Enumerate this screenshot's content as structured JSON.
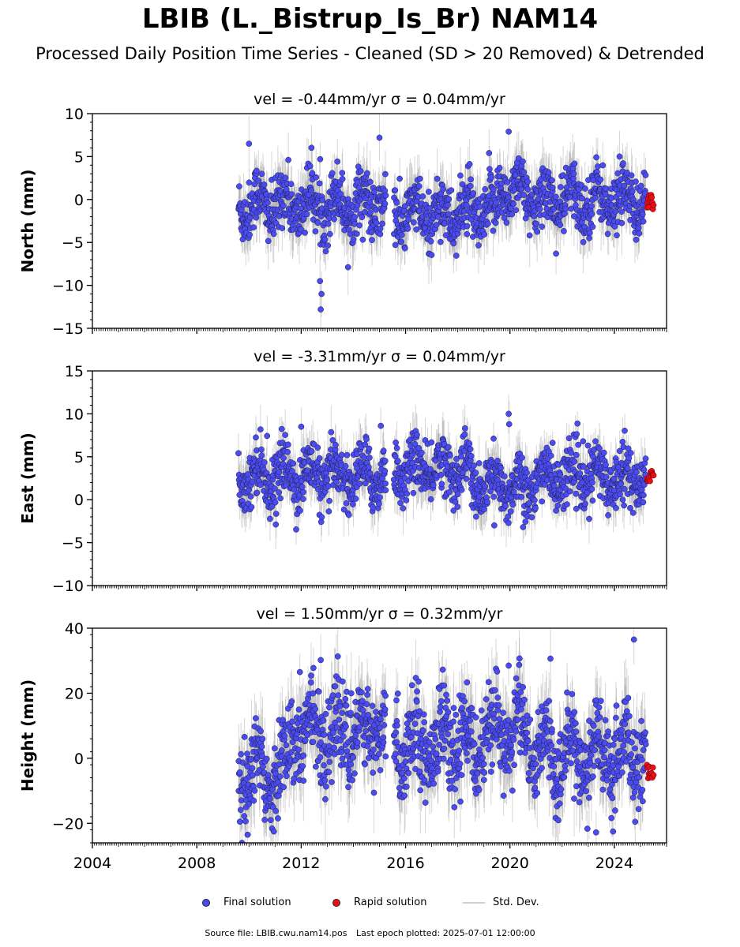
{
  "title": "LBIB (L._Bistrup_Is_Br) NAM14",
  "subtitle": "Processed Daily Position Time Series - Cleaned (SD > 20 Removed) & Detrended",
  "legend": {
    "final_label": "Final solution",
    "rapid_label": "Rapid solution",
    "stddev_label": "Std. Dev."
  },
  "footer": {
    "source": "Source file: LBIB.cwu.nam14.pos",
    "last_epoch": "Last epoch plotted: 2025-07-01 12:00:00"
  },
  "colors": {
    "final": "#4b4bf2",
    "rapid": "#e8101a",
    "stddev": "#8a8a8a"
  },
  "chart_data": [
    {
      "type": "scatter",
      "title": "vel = -0.44mm/yr   σ = 0.04mm/yr",
      "ylabel": "North (mm)",
      "xlim": [
        2004,
        2026
      ],
      "ylim": [
        -15,
        10
      ],
      "yticks": [
        10,
        5,
        0,
        -5,
        -10,
        -15
      ],
      "ytick_labels": [
        "10",
        "5",
        "0",
        "−5",
        "−10",
        "−15"
      ],
      "final_start": 2009.6,
      "final_end": 2025.2,
      "gaps": [
        [
          2015.25,
          2015.55
        ]
      ],
      "rapid_x": [
        2025.25,
        2025.5
      ],
      "rapid_range": [
        -1.2,
        0.7
      ],
      "spread": 1.7,
      "annual_amp": 1.6,
      "segment_means": [
        [
          2009.6,
          2015.3,
          -0.6
        ],
        [
          2015.5,
          2019.5,
          -1.7
        ],
        [
          2019.5,
          2020.6,
          1.2
        ],
        [
          2020.6,
          2025.3,
          -0.1
        ]
      ],
      "error_bar": 2.5,
      "outliers": [
        [
          2012.75,
          -12.8
        ],
        [
          2012.78,
          -11.0
        ],
        [
          2012.72,
          -9.5
        ],
        [
          2019.95,
          7.9
        ],
        [
          2015.0,
          7.2
        ],
        [
          2010.0,
          6.5
        ],
        [
          2019.2,
          5.4
        ],
        [
          2024.2,
          5.0
        ]
      ]
    },
    {
      "type": "scatter",
      "title": "vel = -3.31mm/yr   σ = 0.04mm/yr",
      "ylabel": "East (mm)",
      "xlim": [
        2004,
        2026
      ],
      "ylim": [
        -10,
        15
      ],
      "yticks": [
        15,
        10,
        5,
        0,
        -5,
        -10
      ],
      "ytick_labels": [
        "15",
        "10",
        "5",
        "0",
        "−5",
        "−10"
      ],
      "final_start": 2009.6,
      "final_end": 2025.2,
      "gaps": [
        [
          2015.25,
          2015.55
        ]
      ],
      "rapid_x": [
        2025.25,
        2025.5
      ],
      "rapid_range": [
        2.0,
        3.5
      ],
      "spread": 1.6,
      "annual_amp": 1.5,
      "segment_means": [
        [
          2009.6,
          2015.3,
          2.8
        ],
        [
          2015.5,
          2018.5,
          3.6
        ],
        [
          2018.5,
          2021.0,
          1.6
        ],
        [
          2021.0,
          2025.3,
          2.6
        ]
      ],
      "error_bar": 2.2,
      "outliers": [
        [
          2019.95,
          10.0
        ],
        [
          2019.97,
          8.8
        ],
        [
          2012.0,
          8.5
        ],
        [
          2015.05,
          8.6
        ],
        [
          2020.5,
          -3.2
        ],
        [
          2019.4,
          -3.0
        ],
        [
          2022.8,
          6.8
        ]
      ]
    },
    {
      "type": "scatter",
      "title": "vel = 1.50mm/yr   σ = 0.32mm/yr",
      "ylabel": "Height (mm)",
      "xlim": [
        2004,
        2026
      ],
      "ylim": [
        -26,
        40
      ],
      "yticks": [
        40,
        20,
        0,
        -20
      ],
      "ytick_labels": [
        "40",
        "20",
        "0",
        "−20"
      ],
      "xticks": [
        2004,
        2008,
        2012,
        2016,
        2020,
        2024
      ],
      "xtick_labels": [
        "2004",
        "2008",
        "2012",
        "2016",
        "2020",
        "2024"
      ],
      "final_start": 2009.6,
      "final_end": 2025.2,
      "gaps": [
        [
          2015.25,
          2015.55
        ]
      ],
      "rapid_x": [
        2025.25,
        2025.5
      ],
      "rapid_range": [
        -6.5,
        -1.0
      ],
      "spread": 6.5,
      "annual_amp": 6.0,
      "segment_means": [
        [
          2009.6,
          2011.5,
          -3.5
        ],
        [
          2011.5,
          2015.3,
          8.0
        ],
        [
          2015.5,
          2019.5,
          5.0
        ],
        [
          2019.5,
          2020.7,
          9.0
        ],
        [
          2020.7,
          2025.3,
          1.0
        ]
      ],
      "error_bar": 9.0,
      "outliers": [
        [
          2024.75,
          36.5
        ],
        [
          2012.75,
          30.2
        ],
        [
          2019.95,
          28.5
        ],
        [
          2011.95,
          26.5
        ],
        [
          2009.95,
          -23.5
        ],
        [
          2010.95,
          -22.5
        ],
        [
          2023.3,
          -22.8
        ],
        [
          2023.95,
          -22.5
        ]
      ]
    }
  ]
}
